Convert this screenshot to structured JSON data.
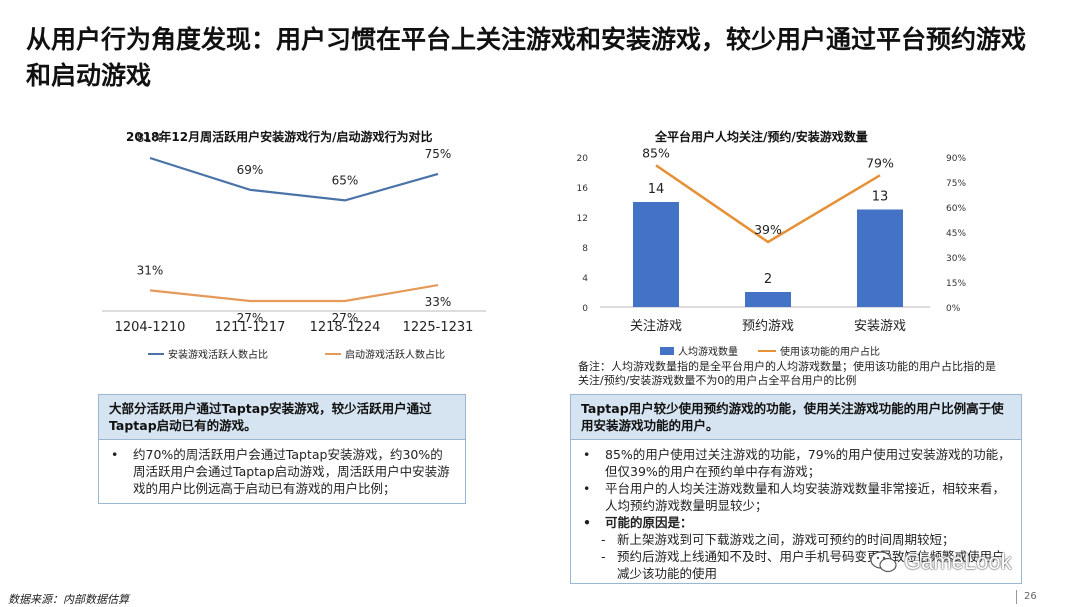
{
  "title": "从用户行为角度发现：用户习惯在平台上关注游戏和安装游戏，较少用户通过平台预约游戏和启动游戏",
  "left_chart": {
    "title": "2018年12月周活跃用户安装游戏行为/启动游戏行为对比",
    "categories": [
      "1204-1210",
      "1211-1217",
      "1218-1224",
      "1225-1231"
    ],
    "series": [
      {
        "name": "安装游戏活跃人数占比",
        "values": [
          81,
          69,
          65,
          75
        ],
        "labels": [
          "81%",
          "69%",
          "65%",
          "75%"
        ],
        "color": "#4a73a8"
      },
      {
        "name": "启动游戏活跃人数占比",
        "values": [
          31,
          27,
          27,
          33
        ],
        "labels": [
          "31%",
          "27%",
          "27%",
          "33%"
        ],
        "color": "#e69a5a"
      }
    ]
  },
  "right_chart": {
    "title": "全平台用户人均关注/预约/安装游戏数量",
    "categories": [
      "关注游戏",
      "预约游戏",
      "安装游戏"
    ],
    "bars": {
      "name": "人均游戏数量",
      "values": [
        14,
        2,
        13
      ],
      "labels": [
        "14",
        "2",
        "13"
      ],
      "color": "#4472c4"
    },
    "line": {
      "name": "使用该功能的用户占比",
      "values": [
        85,
        39,
        79
      ],
      "labels": [
        "85%",
        "39%",
        "79%"
      ],
      "color": "#e69138"
    },
    "left_axis_ticks": [
      "20",
      "16",
      "12",
      "8",
      "4",
      "0"
    ],
    "right_axis_ticks": [
      "90%",
      "75%",
      "60%",
      "45%",
      "30%",
      "15%",
      "0%"
    ]
  },
  "chart_data": [
    {
      "type": "line",
      "title": "2018年12月周活跃用户安装游戏行为/启动游戏行为对比",
      "categories": [
        "1204-1210",
        "1211-1217",
        "1218-1224",
        "1225-1231"
      ],
      "series": [
        {
          "name": "安装游戏活跃人数占比",
          "values": [
            81,
            69,
            65,
            75
          ]
        },
        {
          "name": "启动游戏活跃人数占比",
          "values": [
            31,
            27,
            27,
            33
          ]
        }
      ],
      "unit": "%",
      "legend": "bottom"
    },
    {
      "type": "bar",
      "title": "全平台用户人均关注/预约/安装游戏数量",
      "categories": [
        "关注游戏",
        "预约游戏",
        "安装游戏"
      ],
      "series": [
        {
          "name": "人均游戏数量",
          "type": "bar",
          "values": [
            14,
            2,
            13
          ],
          "axis": "left"
        },
        {
          "name": "使用该功能的用户占比",
          "type": "line",
          "values": [
            85,
            39,
            79
          ],
          "axis": "right",
          "unit": "%"
        }
      ],
      "ylim_left": [
        0,
        20
      ],
      "ylim_right": [
        0,
        90
      ],
      "legend": "bottom"
    }
  ],
  "note": "备注：人均游戏数量指的是全平台用户的人均游戏数量；使用该功能的用户占比指的是关注/预约/安装游戏数量不为0的用户占全平台用户的比例",
  "left_panel": {
    "heading": "大部分活跃用户通过Taptap安装游戏，较少活跃用户通过Taptap启动已有的游戏。",
    "bullets": [
      "约70%的周活跃用户会通过Taptap安装游戏，约30%的周活跃用户会通过Taptap启动游戏，周活跃用户中安装游戏的用户比例远高于启动已有游戏的用户比例；"
    ]
  },
  "right_panel": {
    "heading": "Taptap用户较少使用预约游戏的功能，使用关注游戏功能的用户比例高于使用安装游戏功能的用户。",
    "bullets": [
      "85%的用户使用过关注游戏的功能，79%的用户使用过安装游戏的功能，但仅39%的用户在预约单中存有游戏；",
      "平台用户的人均关注游戏数量和人均安装游戏数量非常接近，相较来看，人均预约游戏数量明显较少；",
      "可能的原因是："
    ],
    "sub_bullets": [
      "新上架游戏到可下载游戏之间，游戏可预约的时间周期较短；",
      "预约后游戏上线通知不及时、用户手机号码变更导致短信频繁或使用户减少该功能的使用"
    ]
  },
  "footer": {
    "source": "数据来源：内部数据估算",
    "page": "26",
    "brand": "GameLook"
  }
}
